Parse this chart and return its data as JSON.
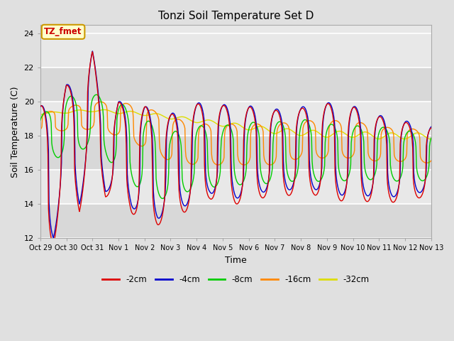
{
  "title": "Tonzi Soil Temperature Set D",
  "xlabel": "Time",
  "ylabel": "Soil Temperature (C)",
  "ylim": [
    12,
    24.5
  ],
  "background_color": "#e0e0e0",
  "plot_bg_color": "#e8e8e8",
  "annotation_text": "TZ_fmet",
  "annotation_bg": "#ffffcc",
  "annotation_border": "#cc9900",
  "annotation_text_color": "#cc0000",
  "series_colors": [
    "#dd0000",
    "#0000cc",
    "#00cc00",
    "#ff8800",
    "#dddd00"
  ],
  "series_labels": [
    "-2cm",
    "-4cm",
    "-8cm",
    "-16cm",
    "-32cm"
  ],
  "xtick_labels": [
    "Oct 29",
    "Oct 30",
    "Oct 31",
    "Nov 1",
    "Nov 2",
    "Nov 3",
    "Nov 4",
    "Nov 5",
    "Nov 6",
    "Nov 7",
    "Nov 8",
    "Nov 9",
    "Nov 10",
    "Nov 11",
    "Nov 12",
    "Nov 13"
  ],
  "ytick_values": [
    12,
    14,
    16,
    18,
    20,
    22,
    24
  ],
  "days": 15,
  "ppd": 48
}
